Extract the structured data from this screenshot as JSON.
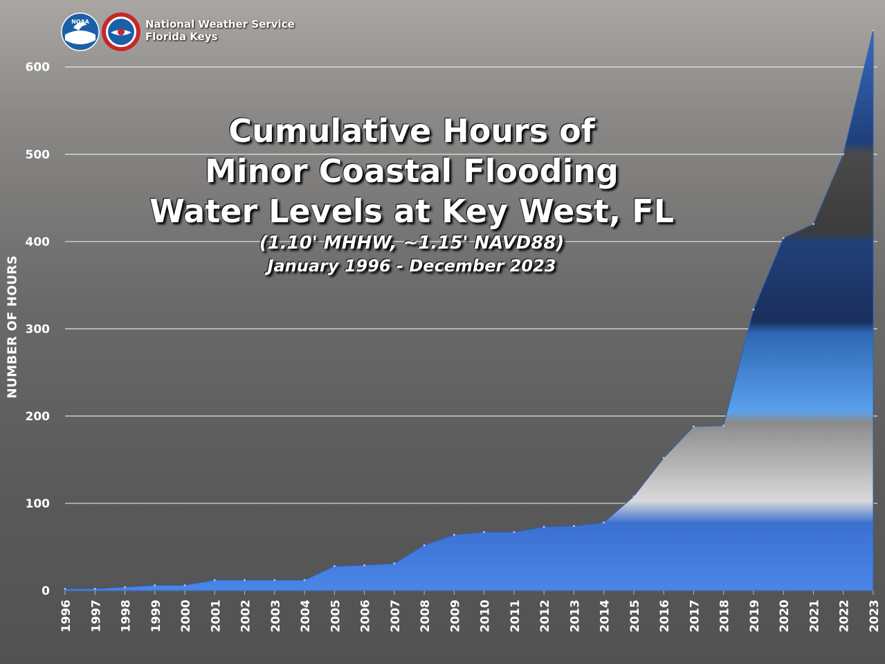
{
  "header": {
    "agency_line1": "National Weather Service",
    "agency_line2": "Florida Keys",
    "noaa_logo_text": "NOAA"
  },
  "chart_data": {
    "type": "area",
    "title_lines": [
      "Cumulative Hours of",
      "Minor Coastal Flooding",
      "Water Levels at Key West, FL"
    ],
    "subtitle": "(1.10' MHHW, ~1.15' NAVD88)",
    "date_range": "January 1996 - December 2023",
    "xlabel": "",
    "ylabel": "NUMBER OF HOURS",
    "categories": [
      "1996",
      "1997",
      "1998",
      "1999",
      "2000",
      "2001",
      "2002",
      "2003",
      "2004",
      "2005",
      "2006",
      "2007",
      "2008",
      "2009",
      "2010",
      "2011",
      "2012",
      "2013",
      "2014",
      "2015",
      "2016",
      "2017",
      "2018",
      "2019",
      "2020",
      "2021",
      "2022",
      "2023"
    ],
    "series": [
      {
        "values": [
          2,
          2,
          4,
          6,
          6,
          12,
          12,
          12,
          12,
          28,
          29,
          31,
          52,
          64,
          67,
          67,
          73,
          74,
          78,
          108,
          152,
          188,
          189,
          322,
          404,
          420,
          500,
          642
        ]
      }
    ],
    "ylim": [
      0,
      645
    ],
    "yticks": [
      0,
      100,
      200,
      300,
      400,
      500,
      600
    ],
    "grid": true,
    "colors": {
      "fill_primary": "#3f78d6",
      "fill_dark": "#1c3a6e",
      "fill_light": "#cfcfcf",
      "gridline": "#e6e6e6"
    }
  }
}
